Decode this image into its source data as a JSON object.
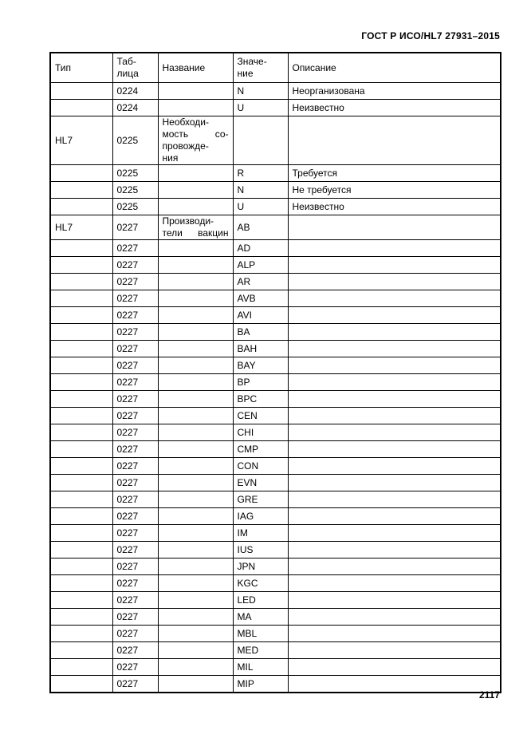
{
  "page": {
    "header_title": "ГОСТ Р ИСО/HL7 27931–2015",
    "page_number": "2117"
  },
  "table": {
    "columns": [
      "Тип",
      "Таб-\nлица",
      "Название",
      "Значе-\nние",
      "Описание"
    ],
    "rows": [
      {
        "type": "",
        "table": "0224",
        "name": "",
        "value": "N",
        "desc": "Неорганизована"
      },
      {
        "type": "",
        "table": "0224",
        "name": "",
        "value": "U",
        "desc": "Неизвестно"
      },
      {
        "type": "HL7",
        "table": "0225",
        "name": "Необходи-\nмость со-\nпровожде-\nния",
        "value": "",
        "desc": ""
      },
      {
        "type": "",
        "table": "0225",
        "name": "",
        "value": "R",
        "desc": "Требуется"
      },
      {
        "type": "",
        "table": "0225",
        "name": "",
        "value": "N",
        "desc": "Не требуется"
      },
      {
        "type": "",
        "table": "0225",
        "name": "",
        "value": "U",
        "desc": "Неизвестно"
      },
      {
        "type": "HL7",
        "table": "0227",
        "name": "Производи-\nтели вакцин",
        "value": "AB",
        "desc": ""
      },
      {
        "type": "",
        "table": "0227",
        "name": "",
        "value": "AD",
        "desc": ""
      },
      {
        "type": "",
        "table": "0227",
        "name": "",
        "value": "ALP",
        "desc": ""
      },
      {
        "type": "",
        "table": "0227",
        "name": "",
        "value": "AR",
        "desc": ""
      },
      {
        "type": "",
        "table": "0227",
        "name": "",
        "value": "AVB",
        "desc": ""
      },
      {
        "type": "",
        "table": "0227",
        "name": "",
        "value": "AVI",
        "desc": ""
      },
      {
        "type": "",
        "table": "0227",
        "name": "",
        "value": "BA",
        "desc": ""
      },
      {
        "type": "",
        "table": "0227",
        "name": "",
        "value": "BAH",
        "desc": ""
      },
      {
        "type": "",
        "table": "0227",
        "name": "",
        "value": "BAY",
        "desc": ""
      },
      {
        "type": "",
        "table": "0227",
        "name": "",
        "value": "BP",
        "desc": ""
      },
      {
        "type": "",
        "table": "0227",
        "name": "",
        "value": "BPC",
        "desc": ""
      },
      {
        "type": "",
        "table": "0227",
        "name": "",
        "value": "CEN",
        "desc": ""
      },
      {
        "type": "",
        "table": "0227",
        "name": "",
        "value": "CHI",
        "desc": ""
      },
      {
        "type": "",
        "table": "0227",
        "name": "",
        "value": "CMP",
        "desc": ""
      },
      {
        "type": "",
        "table": "0227",
        "name": "",
        "value": "CON",
        "desc": ""
      },
      {
        "type": "",
        "table": "0227",
        "name": "",
        "value": "EVN",
        "desc": ""
      },
      {
        "type": "",
        "table": "0227",
        "name": "",
        "value": "GRE",
        "desc": ""
      },
      {
        "type": "",
        "table": "0227",
        "name": "",
        "value": "IAG",
        "desc": ""
      },
      {
        "type": "",
        "table": "0227",
        "name": "",
        "value": "IM",
        "desc": ""
      },
      {
        "type": "",
        "table": "0227",
        "name": "",
        "value": "IUS",
        "desc": ""
      },
      {
        "type": "",
        "table": "0227",
        "name": "",
        "value": "JPN",
        "desc": ""
      },
      {
        "type": "",
        "table": "0227",
        "name": "",
        "value": "KGC",
        "desc": ""
      },
      {
        "type": "",
        "table": "0227",
        "name": "",
        "value": "LED",
        "desc": ""
      },
      {
        "type": "",
        "table": "0227",
        "name": "",
        "value": "MA",
        "desc": ""
      },
      {
        "type": "",
        "table": "0227",
        "name": "",
        "value": "MBL",
        "desc": ""
      },
      {
        "type": "",
        "table": "0227",
        "name": "",
        "value": "MED",
        "desc": ""
      },
      {
        "type": "",
        "table": "0227",
        "name": "",
        "value": "MIL",
        "desc": ""
      },
      {
        "type": "",
        "table": "0227",
        "name": "",
        "value": "MIP",
        "desc": ""
      }
    ]
  }
}
